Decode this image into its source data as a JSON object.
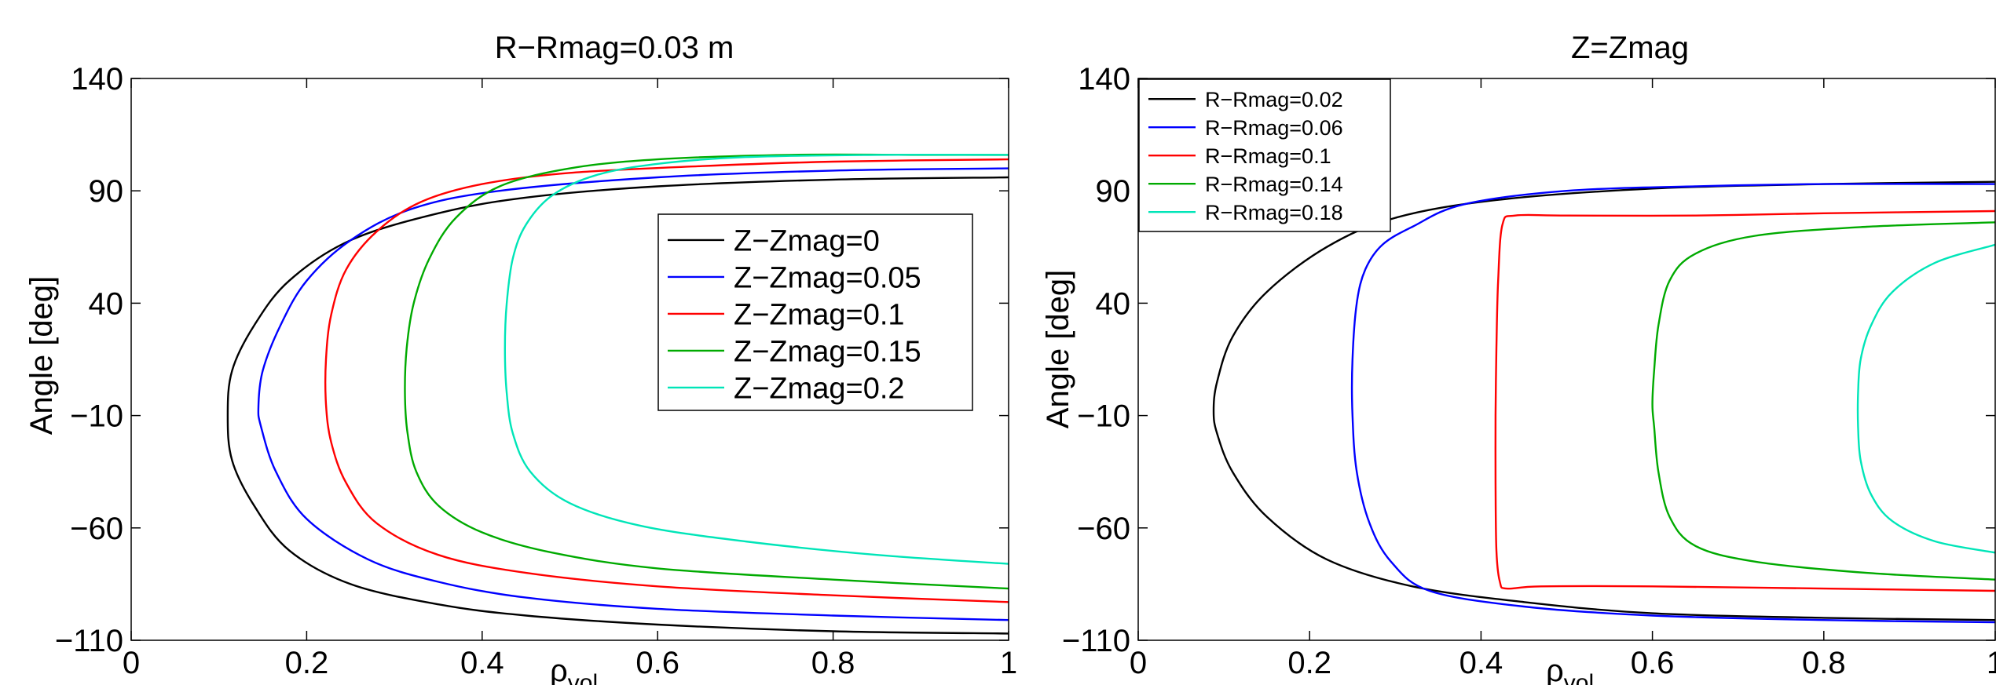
{
  "chart_data": [
    {
      "type": "line",
      "title": "R−Rmag=0.03 m",
      "xlabel": "ρ",
      "xlabel_sub": "vol",
      "ylabel": "Angle [deg]",
      "xlim": [
        0,
        1
      ],
      "ylim": [
        -110,
        140
      ],
      "xticks": [
        0,
        0.2,
        0.4,
        0.6,
        0.8,
        1
      ],
      "xticklabels": [
        "0",
        "0.2",
        "0.4",
        "0.6",
        "0.8",
        "1"
      ],
      "yticks": [
        -110,
        -60,
        -10,
        40,
        90,
        140
      ],
      "yticklabels": [
        "−110",
        "−60",
        "−10",
        "40",
        "90",
        "140"
      ],
      "legend_position": "center-right",
      "series": [
        {
          "name": "Z−Zmag=0",
          "color": "#000000",
          "x": [
            1.0,
            0.8,
            0.6,
            0.45,
            0.35,
            0.25,
            0.18,
            0.14,
            0.115,
            0.11,
            0.115,
            0.14,
            0.18,
            0.25,
            0.35,
            0.45,
            0.6,
            0.8,
            1.0
          ],
          "y": [
            -107,
            -106,
            -103,
            -99,
            -94,
            -85,
            -70,
            -50,
            -30,
            -10,
            10,
            30,
            50,
            68,
            80,
            87,
            92,
            95,
            96
          ]
        },
        {
          "name": "Z−Zmag=0.05",
          "color": "#0000ff",
          "x": [
            1.0,
            0.8,
            0.6,
            0.45,
            0.35,
            0.27,
            0.2,
            0.165,
            0.148,
            0.145,
            0.15,
            0.17,
            0.2,
            0.25,
            0.32,
            0.42,
            0.6,
            0.8,
            1.0
          ],
          "y": [
            -101,
            -99,
            -96,
            -91,
            -84,
            -74,
            -56,
            -35,
            -15,
            -6,
            10,
            30,
            50,
            68,
            82,
            90,
            96,
            99,
            100
          ]
        },
        {
          "name": "Z−Zmag=0.1",
          "color": "#ff0000",
          "x": [
            1.0,
            0.8,
            0.6,
            0.45,
            0.35,
            0.28,
            0.245,
            0.228,
            0.222,
            0.222,
            0.228,
            0.245,
            0.28,
            0.33,
            0.4,
            0.5,
            0.65,
            0.8,
            1.0
          ],
          "y": [
            -93,
            -90,
            -86,
            -80,
            -72,
            -58,
            -40,
            -22,
            -5,
            15,
            35,
            55,
            72,
            85,
            93,
            98,
            101,
            103,
            104
          ]
        },
        {
          "name": "Z−Zmag=0.15",
          "color": "#00aa00",
          "x": [
            1.0,
            0.8,
            0.6,
            0.48,
            0.4,
            0.35,
            0.325,
            0.315,
            0.312,
            0.314,
            0.322,
            0.34,
            0.37,
            0.42,
            0.5,
            0.6,
            0.75,
            0.9,
            1.0
          ],
          "y": [
            -87,
            -83,
            -78,
            -71,
            -62,
            -50,
            -35,
            -18,
            0,
            20,
            40,
            60,
            78,
            92,
            100,
            104,
            106,
            106,
            106
          ]
        },
        {
          "name": "Z−Zmag=0.2",
          "color": "#00e5b8",
          "x": [
            1.0,
            0.85,
            0.7,
            0.58,
            0.5,
            0.455,
            0.435,
            0.428,
            0.426,
            0.428,
            0.435,
            0.45,
            0.48,
            0.53,
            0.6,
            0.7,
            0.85,
            1.0
          ],
          "y": [
            -76,
            -72,
            -66,
            -59,
            -49,
            -35,
            -18,
            0,
            20,
            40,
            60,
            75,
            88,
            97,
            102,
            105,
            106,
            106
          ]
        }
      ]
    },
    {
      "type": "line",
      "title": "Z=Zmag",
      "xlabel": "ρ",
      "xlabel_sub": "vol",
      "ylabel": "Angle [deg]",
      "xlim": [
        0,
        1
      ],
      "ylim": [
        -110,
        140
      ],
      "xticks": [
        0,
        0.2,
        0.4,
        0.6,
        0.8,
        1
      ],
      "xticklabels": [
        "0",
        "0.2",
        "0.4",
        "0.6",
        "0.8",
        "1"
      ],
      "yticks": [
        -110,
        -60,
        -10,
        40,
        90,
        140
      ],
      "yticklabels": [
        "−110",
        "−60",
        "−10",
        "40",
        "90",
        "140"
      ],
      "legend_position": "top-left",
      "series": [
        {
          "name": "R−Rmag=0.02",
          "color": "#000000",
          "x": [
            1.0,
            0.8,
            0.6,
            0.45,
            0.32,
            0.22,
            0.15,
            0.11,
            0.092,
            0.088,
            0.092,
            0.11,
            0.15,
            0.22,
            0.3,
            0.42,
            0.6,
            0.8,
            1.0
          ],
          "y": [
            -101,
            -100,
            -98,
            -93,
            -86,
            -74,
            -55,
            -35,
            -18,
            -8,
            5,
            25,
            45,
            65,
            78,
            86,
            91,
            93,
            94
          ]
        },
        {
          "name": "R−Rmag=0.06",
          "color": "#0000ff",
          "x": [
            1.0,
            0.8,
            0.6,
            0.45,
            0.34,
            0.295,
            0.27,
            0.255,
            0.25,
            0.25,
            0.255,
            0.265,
            0.285,
            0.32,
            0.38,
            0.5,
            0.65,
            0.8,
            1.0
          ],
          "y": [
            -102,
            -101,
            -99,
            -95,
            -88,
            -75,
            -58,
            -35,
            -10,
            15,
            40,
            55,
            66,
            74,
            84,
            90,
            92,
            93,
            93
          ]
        },
        {
          "name": "R−Rmag=0.1",
          "color": "#ff0000",
          "x": [
            1.0,
            0.8,
            0.6,
            0.47,
            0.43,
            0.422,
            0.418,
            0.417,
            0.417,
            0.418,
            0.42,
            0.425,
            0.44,
            0.5,
            0.65,
            0.8,
            1.0
          ],
          "y": [
            -88,
            -87,
            -86,
            -86,
            -87,
            -84,
            -70,
            -40,
            -10,
            20,
            50,
            75,
            79,
            79,
            79,
            80,
            81
          ]
        },
        {
          "name": "R−Rmag=0.14",
          "color": "#00aa00",
          "x": [
            1.0,
            0.85,
            0.72,
            0.65,
            0.62,
            0.607,
            0.602,
            0.6,
            0.602,
            0.607,
            0.62,
            0.65,
            0.72,
            0.85,
            1.0
          ],
          "y": [
            -83,
            -80,
            -75,
            -68,
            -55,
            -35,
            -15,
            -5,
            10,
            30,
            50,
            62,
            70,
            74,
            76
          ]
        },
        {
          "name": "R−Rmag=0.18",
          "color": "#00e5b8",
          "x": [
            1.0,
            0.93,
            0.88,
            0.855,
            0.843,
            0.84,
            0.84,
            0.843,
            0.855,
            0.88,
            0.93,
            1.0
          ],
          "y": [
            -71,
            -66,
            -57,
            -45,
            -30,
            -15,
            0,
            15,
            30,
            45,
            58,
            66
          ]
        }
      ]
    }
  ]
}
